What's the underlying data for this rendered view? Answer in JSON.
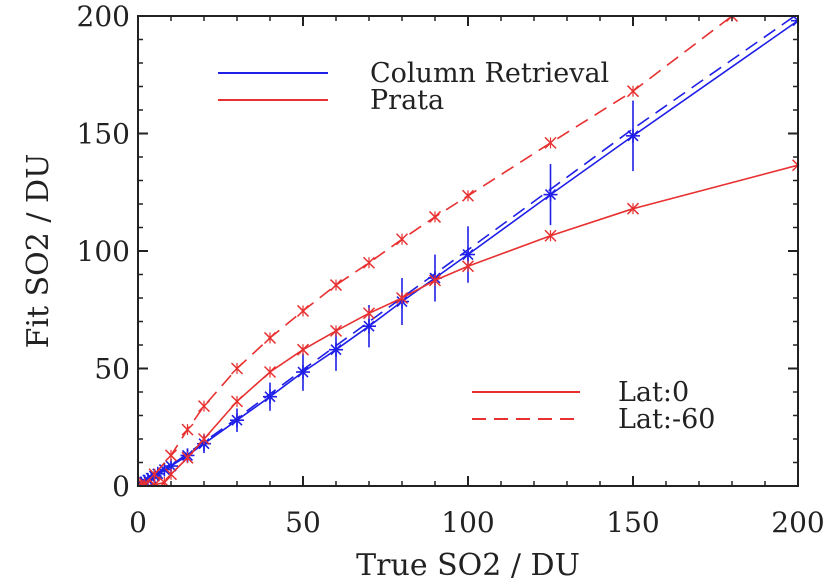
{
  "chart_data": {
    "type": "line",
    "xlabel": "True SO2 / DU",
    "ylabel": "Fit SO2 / DU",
    "xlim": [
      0,
      200
    ],
    "ylim": [
      0,
      200
    ],
    "xticks": [
      "0",
      "50",
      "100",
      "150",
      "200"
    ],
    "yticks": [
      "0",
      "50",
      "100",
      "150",
      "200"
    ],
    "grid": false,
    "colors": {
      "column_retrieval": "#1f1fe8",
      "prata": "#e83030",
      "axes": "#222222"
    },
    "method_legend": [
      {
        "label": "Column Retrieval",
        "color": "#1f1fe8",
        "dash": "solid"
      },
      {
        "label": "Prata",
        "color": "#e83030",
        "dash": "solid"
      }
    ],
    "latitude_legend": [
      {
        "label": "Lat:0",
        "color": "#e83030",
        "dash": "solid"
      },
      {
        "label": "Lat:-60",
        "color": "#e83030",
        "dash": "dashed"
      }
    ],
    "series": [
      {
        "name": "Column Retrieval Lat:0",
        "color": "#1f1fe8",
        "dash": "solid",
        "marker": "star",
        "errorbars": true,
        "x": [
          0,
          1,
          2,
          3,
          4,
          5,
          6,
          8,
          10,
          15,
          20,
          30,
          40,
          50,
          60,
          70,
          80,
          90,
          100,
          125,
          150,
          200
        ],
        "y": [
          0,
          1,
          1.8,
          2.6,
          3.4,
          4.3,
          5.2,
          7,
          8.5,
          13,
          18,
          28,
          38,
          48.5,
          58,
          68,
          78.5,
          88.5,
          98.5,
          124,
          149,
          198
        ],
        "yerr": [
          0.5,
          0.5,
          0.5,
          0.5,
          0.5,
          1,
          1,
          1.5,
          2,
          3,
          4,
          5,
          6,
          8,
          9,
          9,
          10,
          10,
          12,
          13,
          15,
          0
        ]
      },
      {
        "name": "Column Retrieval Lat:-60",
        "color": "#1f1fe8",
        "dash": "dashed",
        "marker": "none",
        "errorbars": false,
        "x": [
          0,
          10,
          30,
          50,
          100,
          150,
          200
        ],
        "y": [
          0,
          8.8,
          28.8,
          49.5,
          100.5,
          152,
          201
        ]
      },
      {
        "name": "Prata Lat:0",
        "color": "#e83030",
        "dash": "solid",
        "marker": "x",
        "x": [
          0,
          2,
          5,
          8,
          10,
          15,
          20,
          30,
          40,
          50,
          60,
          70,
          80,
          90,
          100,
          125,
          150,
          200
        ],
        "y": [
          0,
          0,
          0.5,
          1.5,
          5,
          12,
          20,
          36,
          48.5,
          58,
          66,
          73.5,
          80,
          87.5,
          93.5,
          106.5,
          118,
          136.5
        ]
      },
      {
        "name": "Prata Lat:-60",
        "color": "#e83030",
        "dash": "dashed",
        "marker": "x",
        "x": [
          0,
          2,
          5,
          10,
          15,
          20,
          30,
          40,
          50,
          60,
          70,
          80,
          90,
          100,
          125,
          150,
          180
        ],
        "y": [
          0,
          1,
          5,
          13,
          24,
          34,
          50,
          63,
          74.5,
          85.5,
          95,
          105,
          114.5,
          123.5,
          146,
          168,
          200
        ]
      }
    ]
  }
}
